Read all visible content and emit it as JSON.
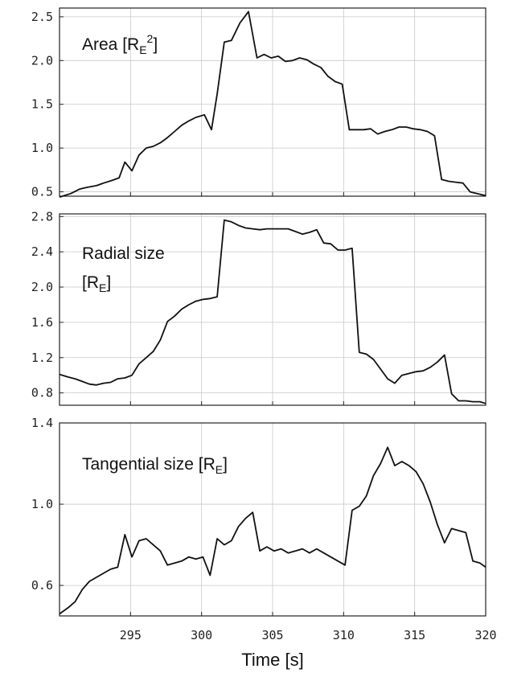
{
  "chart_data": {
    "type": "line",
    "xlabel": "Time [s]",
    "xlim": [
      290,
      320
    ],
    "xticks": [
      295,
      300,
      305,
      310,
      315,
      320
    ],
    "grid": true,
    "panels": [
      {
        "label_text": "Area [R",
        "label_sub": "E",
        "label_sup": "2",
        "label_close": "]",
        "ylim": [
          0.45,
          2.6
        ],
        "yticks": [
          0.5,
          1.0,
          1.5,
          2.0,
          2.5
        ],
        "ytick_labels": [
          "0.5",
          "1.0",
          "1.5",
          "2.0",
          "2.5"
        ],
        "series": [
          {
            "x": [
              290.0,
              290.8,
              291.4,
              291.9,
              292.6,
              293.1,
              293.7,
              294.2,
              294.6,
              295.1,
              295.6,
              296.1,
              296.6,
              297.1,
              297.6,
              298.1,
              298.6,
              299.1,
              299.6,
              300.2,
              300.7,
              301.1,
              301.6,
              302.1,
              302.7,
              303.3,
              303.9,
              304.4,
              304.9,
              305.4,
              305.9,
              306.4,
              306.9,
              307.4,
              307.9,
              308.4,
              308.9,
              309.4,
              309.9,
              310.4,
              310.9,
              311.4,
              311.9,
              312.4,
              312.9,
              313.4,
              313.9,
              314.4,
              314.9,
              315.4,
              315.9,
              316.4,
              316.9,
              317.4,
              317.9,
              318.4,
              318.9,
              319.4,
              319.9,
              320.0
            ],
            "y": [
              0.44,
              0.48,
              0.53,
              0.55,
              0.57,
              0.6,
              0.63,
              0.66,
              0.84,
              0.74,
              0.92,
              1.0,
              1.02,
              1.06,
              1.12,
              1.19,
              1.26,
              1.31,
              1.35,
              1.38,
              1.21,
              1.62,
              2.21,
              2.23,
              2.43,
              2.56,
              2.03,
              2.07,
              2.03,
              2.05,
              1.99,
              2.0,
              2.03,
              2.01,
              1.96,
              1.92,
              1.82,
              1.76,
              1.73,
              1.21,
              1.21,
              1.21,
              1.22,
              1.16,
              1.19,
              1.21,
              1.24,
              1.24,
              1.22,
              1.21,
              1.19,
              1.14,
              0.64,
              0.62,
              0.61,
              0.6,
              0.5,
              0.48,
              0.46,
              0.46
            ]
          }
        ]
      },
      {
        "label_text": "Radial size",
        "label_line2": "[R",
        "label_sub": "E",
        "label_close": "]",
        "ylim": [
          0.66,
          2.83
        ],
        "yticks": [
          0.8,
          1.2,
          1.6,
          2.0,
          2.4,
          2.8
        ],
        "ytick_labels": [
          "0.8",
          "1.2",
          "1.6",
          "2.0",
          "2.4",
          "2.8"
        ],
        "series": [
          {
            "x": [
              290.0,
              290.6,
              291.1,
              291.6,
              292.1,
              292.6,
              293.1,
              293.6,
              294.1,
              294.6,
              295.1,
              295.6,
              296.1,
              296.6,
              297.1,
              297.6,
              298.1,
              298.6,
              299.1,
              299.6,
              300.1,
              300.6,
              301.1,
              301.6,
              302.1,
              302.6,
              303.1,
              303.6,
              304.1,
              304.6,
              305.1,
              305.6,
              306.1,
              306.6,
              307.1,
              307.6,
              308.1,
              308.6,
              309.1,
              309.6,
              310.1,
              310.6,
              311.1,
              311.6,
              312.1,
              312.6,
              313.1,
              313.6,
              314.1,
              314.6,
              315.1,
              315.6,
              316.1,
              316.6,
              317.1,
              317.6,
              318.1,
              318.6,
              319.1,
              319.6,
              320.0
            ],
            "y": [
              1.01,
              0.98,
              0.96,
              0.93,
              0.9,
              0.89,
              0.91,
              0.92,
              0.96,
              0.97,
              1.0,
              1.13,
              1.2,
              1.27,
              1.4,
              1.61,
              1.67,
              1.75,
              1.8,
              1.84,
              1.86,
              1.87,
              1.89,
              2.76,
              2.74,
              2.7,
              2.67,
              2.66,
              2.65,
              2.66,
              2.66,
              2.66,
              2.66,
              2.63,
              2.6,
              2.62,
              2.65,
              2.5,
              2.49,
              2.42,
              2.42,
              2.44,
              1.26,
              1.24,
              1.18,
              1.07,
              0.96,
              0.91,
              1.0,
              1.02,
              1.04,
              1.05,
              1.09,
              1.15,
              1.23,
              0.79,
              0.71,
              0.71,
              0.7,
              0.7,
              0.68
            ]
          }
        ]
      },
      {
        "label_text": "Tangential size [R",
        "label_sub": "E",
        "label_close": "]",
        "ylim": [
          0.45,
          1.4
        ],
        "yticks": [
          0.6,
          1.0,
          1.4
        ],
        "ytick_labels": [
          "0.6",
          "1.0",
          "1.4"
        ],
        "series": [
          {
            "x": [
              290.0,
              290.6,
              291.1,
              291.6,
              292.1,
              292.6,
              293.1,
              293.6,
              294.1,
              294.6,
              295.1,
              295.6,
              296.1,
              296.6,
              297.1,
              297.6,
              298.1,
              298.6,
              299.1,
              299.6,
              300.1,
              300.6,
              301.1,
              301.6,
              302.1,
              302.6,
              303.1,
              303.6,
              304.1,
              304.6,
              305.1,
              305.6,
              306.1,
              306.6,
              307.1,
              307.6,
              308.1,
              308.6,
              309.1,
              309.6,
              310.1,
              310.6,
              311.1,
              311.6,
              312.1,
              312.6,
              313.1,
              313.6,
              314.1,
              314.6,
              315.1,
              315.6,
              316.1,
              316.6,
              317.1,
              317.6,
              318.1,
              318.6,
              319.1,
              319.6,
              320.0
            ],
            "y": [
              0.46,
              0.49,
              0.52,
              0.58,
              0.62,
              0.64,
              0.66,
              0.68,
              0.69,
              0.85,
              0.74,
              0.82,
              0.83,
              0.8,
              0.77,
              0.7,
              0.71,
              0.72,
              0.74,
              0.73,
              0.74,
              0.65,
              0.83,
              0.8,
              0.82,
              0.89,
              0.93,
              0.96,
              0.77,
              0.79,
              0.77,
              0.78,
              0.76,
              0.77,
              0.78,
              0.76,
              0.78,
              0.76,
              0.74,
              0.72,
              0.7,
              0.97,
              0.99,
              1.04,
              1.14,
              1.2,
              1.28,
              1.19,
              1.21,
              1.19,
              1.16,
              1.1,
              1.01,
              0.9,
              0.81,
              0.88,
              0.87,
              0.86,
              0.72,
              0.71,
              0.69
            ]
          }
        ]
      }
    ]
  }
}
